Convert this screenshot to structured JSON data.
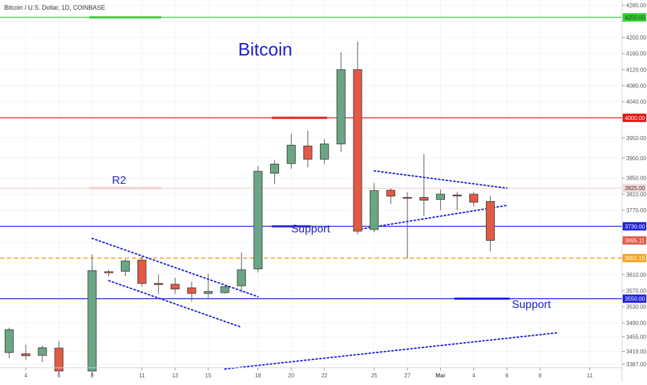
{
  "header": {
    "symbol_title": "Bitcoin / U.S. Dollar, 1D, COINBASE"
  },
  "colors": {
    "up": "#6aa584",
    "down": "#e05a45",
    "green_line": "#33cc33",
    "red_line": "#e81515",
    "blue_line": "#1e22d9",
    "orange_line": "#f5a623",
    "r2_line": "#f1c6c6",
    "annotation_text": "#1e22c8",
    "grid": "#f0f3f5",
    "axis_text": "#555555"
  },
  "chart_data": {
    "type": "candlestick",
    "title": "",
    "ylim": [
      3375,
      4290
    ],
    "y_ticks": [
      4280,
      4240,
      4200,
      4160,
      4120,
      4080,
      4040,
      4000,
      3950,
      3900,
      3850,
      3810,
      3770,
      3730,
      3690,
      3650,
      3610,
      3570,
      3530,
      3490,
      3455,
      3419,
      3387
    ],
    "x_ticks": [
      {
        "label": "4",
        "index": -1
      },
      {
        "label": "6",
        "index": 1
      },
      {
        "label": "8",
        "index": 3
      },
      {
        "label": "11",
        "index": 6
      },
      {
        "label": "13",
        "index": 8
      },
      {
        "label": "15",
        "index": 10
      },
      {
        "label": "18",
        "index": 13
      },
      {
        "label": "20",
        "index": 15
      },
      {
        "label": "22",
        "index": 17
      },
      {
        "label": "25",
        "index": 20
      },
      {
        "label": "27",
        "index": 22
      },
      {
        "label": "Mar",
        "index": 24
      },
      {
        "label": "4",
        "index": 26
      },
      {
        "label": "6",
        "index": 28
      },
      {
        "label": "8",
        "index": 30
      },
      {
        "label": "11",
        "index": 33
      }
    ],
    "candles": [
      {
        "i": -2,
        "o": 3416,
        "h": 3478,
        "c": 3473,
        "l": 3402
      },
      {
        "i": -1,
        "o": 3413,
        "h": 3435,
        "c": 3408,
        "l": 3398
      },
      {
        "i": 0,
        "o": 3409,
        "h": 3433,
        "c": 3428,
        "l": 3392
      },
      {
        "i": 1,
        "o": 3427,
        "h": 3445,
        "c": 3370,
        "l": 3362
      },
      {
        "i": 3,
        "o": 3370,
        "h": 3660,
        "c": 3620,
        "l": 3360
      },
      {
        "i": 4,
        "o": 3617,
        "h": 3622,
        "c": 3615,
        "l": 3605
      },
      {
        "i": 5,
        "o": 3618,
        "h": 3648,
        "c": 3644,
        "l": 3606
      },
      {
        "i": 6,
        "o": 3646,
        "h": 3655,
        "c": 3588,
        "l": 3580
      },
      {
        "i": 7,
        "o": 3588,
        "h": 3610,
        "c": 3585,
        "l": 3562
      },
      {
        "i": 8,
        "o": 3586,
        "h": 3602,
        "c": 3574,
        "l": 3562
      },
      {
        "i": 9,
        "o": 3577,
        "h": 3592,
        "c": 3563,
        "l": 3543
      },
      {
        "i": 10,
        "o": 3563,
        "h": 3612,
        "c": 3568,
        "l": 3552
      },
      {
        "i": 11,
        "o": 3565,
        "h": 3582,
        "c": 3580,
        "l": 3562
      },
      {
        "i": 12,
        "o": 3582,
        "h": 3665,
        "c": 3622,
        "l": 3565
      },
      {
        "i": 13,
        "o": 3624,
        "h": 3880,
        "c": 3867,
        "l": 3615
      },
      {
        "i": 14,
        "o": 3862,
        "h": 3895,
        "c": 3885,
        "l": 3835
      },
      {
        "i": 15,
        "o": 3886,
        "h": 3960,
        "c": 3932,
        "l": 3873
      },
      {
        "i": 16,
        "o": 3930,
        "h": 3968,
        "c": 3897,
        "l": 3877
      },
      {
        "i": 17,
        "o": 3897,
        "h": 3947,
        "c": 3935,
        "l": 3885
      },
      {
        "i": 18,
        "o": 3935,
        "h": 4163,
        "c": 4120,
        "l": 3915
      },
      {
        "i": 19,
        "o": 4120,
        "h": 4190,
        "c": 3718,
        "l": 3710
      },
      {
        "i": 20,
        "o": 3722,
        "h": 3838,
        "c": 3819,
        "l": 3715
      },
      {
        "i": 21,
        "o": 3820,
        "h": 3825,
        "c": 3805,
        "l": 3785
      },
      {
        "i": 22,
        "o": 3802,
        "h": 3815,
        "c": 3800,
        "l": 3650
      },
      {
        "i": 23,
        "o": 3802,
        "h": 3910,
        "c": 3795,
        "l": 3755
      },
      {
        "i": 24,
        "o": 3797,
        "h": 3822,
        "c": 3810,
        "l": 3770
      },
      {
        "i": 25,
        "o": 3808,
        "h": 3816,
        "c": 3806,
        "l": 3770
      },
      {
        "i": 26,
        "o": 3810,
        "h": 3815,
        "c": 3790,
        "l": 3780
      },
      {
        "i": 27,
        "o": 3792,
        "h": 3806,
        "c": 3695,
        "l": 3668
      }
    ],
    "levels": [
      {
        "value": 4250,
        "color": "#33cc33",
        "style": "solid",
        "badge": "4250.00",
        "bg_bright": true
      },
      {
        "value": 4000,
        "color": "#e81515",
        "style": "solid",
        "badge": "4000.00"
      },
      {
        "value": 3825,
        "color": "#f1c6c6",
        "style": "solid",
        "badge": "3825.00",
        "light": true
      },
      {
        "value": 3730,
        "color": "#1e22d9",
        "style": "solid",
        "badge": "3730.00"
      },
      {
        "value": 3651,
        "color": "#f5a623",
        "style": "dashed",
        "badge": "3651.15"
      },
      {
        "value": 3550,
        "color": "#1e22d9",
        "style": "solid",
        "badge": "3550.00"
      }
    ],
    "last_price": {
      "value": 3695,
      "badge": "3695.11",
      "color": "#e05a45"
    },
    "thick_segments": [
      {
        "value": 4250,
        "i1": 3,
        "i2": 7,
        "color": "#33cc33"
      },
      {
        "value": 4000,
        "i1": 14,
        "i2": 17,
        "color": "#e81515"
      },
      {
        "value": 3825,
        "i1": 3,
        "i2": 7,
        "color": "#f5cccc"
      },
      {
        "value": 3730,
        "i1": 14,
        "i2": 16,
        "color": "#1e22d9"
      },
      {
        "value": 3550,
        "i1": 25,
        "i2": 28,
        "color": "#1e22d9"
      }
    ],
    "trendlines": [
      {
        "i1": 3,
        "v1": 3700,
        "i2": 13,
        "v2": 3555
      },
      {
        "i1": 4,
        "v1": 3595,
        "i2": 12,
        "v2": 3479
      },
      {
        "i1": 20,
        "v1": 3868,
        "i2": 28,
        "v2": 3825
      },
      {
        "i1": 19,
        "v1": 3722,
        "i2": 28,
        "v2": 3782
      },
      {
        "i1": 11,
        "v1": 3375,
        "i2": 31,
        "v2": 3465
      }
    ],
    "annotations": [
      {
        "text": "Bitcoin",
        "i": 11.8,
        "v": 4155,
        "size": 26
      },
      {
        "text": "R2",
        "i": 4.2,
        "v": 3836,
        "size": 16
      },
      {
        "text": "Support",
        "i": 15.0,
        "v": 3715,
        "size": 16
      },
      {
        "text": "Support",
        "i": 28.3,
        "v": 3527,
        "size": 16
      }
    ]
  }
}
